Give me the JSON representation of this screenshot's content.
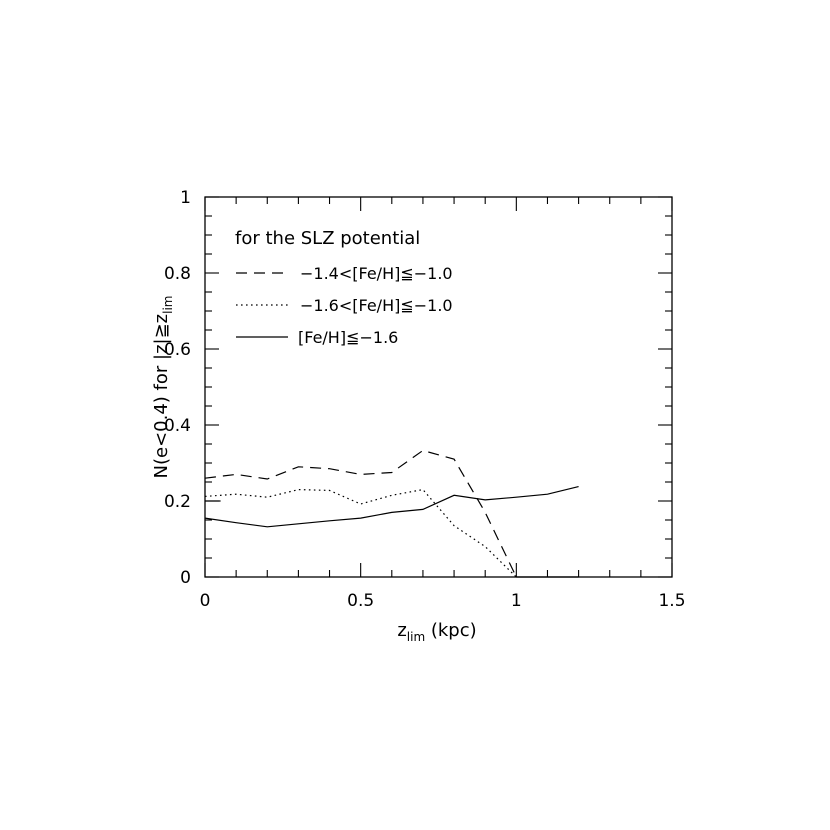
{
  "chart_data": {
    "type": "line",
    "title": "for the SLZ potential",
    "xlabel": "z",
    "xlabel_sub": "lim",
    "xlabel_units": " (kpc)",
    "ylabel": "N(e<0.4) for |z|≧z",
    "ylabel_sub": "lim",
    "xlim": [
      0,
      1.5
    ],
    "ylim": [
      0,
      1
    ],
    "xticks": [
      0,
      0.5,
      1,
      1.5
    ],
    "xtick_labels": [
      "0",
      "0.5",
      "1",
      "1.5"
    ],
    "yticks": [
      0,
      0.2,
      0.4,
      0.6,
      0.8,
      1
    ],
    "ytick_labels": [
      "0",
      "0.2",
      "0.4",
      "0.6",
      "0.8",
      "1"
    ],
    "grid": false,
    "legend_position": "top-left",
    "series": [
      {
        "name": "−1.4<[Fe/H]≦−1.0",
        "style": "dashed",
        "x": [
          0,
          0.1,
          0.2,
          0.3,
          0.4,
          0.5,
          0.6,
          0.7,
          0.8,
          0.9,
          1.0
        ],
        "y": [
          0.26,
          0.27,
          0.258,
          0.29,
          0.285,
          0.27,
          0.275,
          0.333,
          0.31,
          0.17,
          0.0
        ]
      },
      {
        "name": "−1.6<[Fe/H]≦−1.0",
        "style": "dotted",
        "x": [
          0,
          0.1,
          0.2,
          0.3,
          0.4,
          0.5,
          0.6,
          0.7,
          0.8,
          0.9,
          1.0
        ],
        "y": [
          0.212,
          0.218,
          0.21,
          0.23,
          0.228,
          0.192,
          0.215,
          0.23,
          0.135,
          0.08,
          0.0
        ]
      },
      {
        "name": "[Fe/H]≦−1.6",
        "style": "solid",
        "x": [
          0,
          0.1,
          0.2,
          0.3,
          0.4,
          0.5,
          0.6,
          0.7,
          0.8,
          0.9,
          1.0,
          1.1,
          1.2
        ],
        "y": [
          0.155,
          0.143,
          0.132,
          0.14,
          0.148,
          0.155,
          0.17,
          0.178,
          0.215,
          0.203,
          0.21,
          0.218,
          0.238
        ]
      }
    ],
    "extra_segments": [
      {
        "style": "solid",
        "x": [
          0,
          0.05
        ],
        "y": [
          0.2,
          0.2
        ]
      },
      {
        "style": "solid",
        "x": [
          1.0,
          1.2
        ],
        "y": [
          0.0,
          0.0
        ]
      }
    ]
  }
}
